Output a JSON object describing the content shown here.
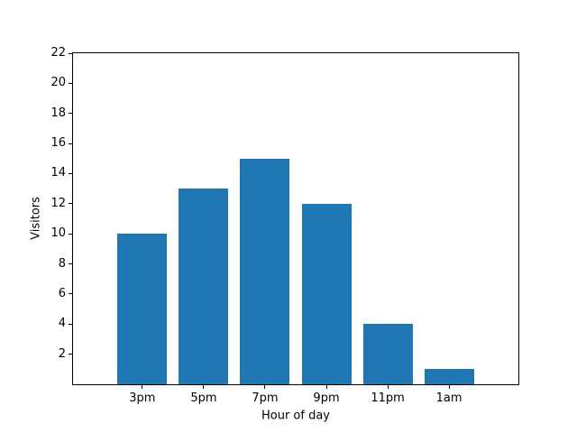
{
  "figure": {
    "background": "#ffffff",
    "spine_color": "#000000",
    "text_color": "#000000"
  },
  "chart_data": {
    "type": "bar",
    "categories": [
      "3pm",
      "5pm",
      "7pm",
      "9pm",
      "11pm",
      "1am"
    ],
    "values": [
      10,
      13,
      15,
      12,
      4,
      1
    ],
    "title": "",
    "xlabel": "Hour of day",
    "ylabel": "Visitors",
    "ylim": [
      0,
      22
    ],
    "yticks": [
      2,
      4,
      6,
      8,
      10,
      12,
      14,
      16,
      18,
      20,
      22
    ],
    "bar_color": "#1f77b4",
    "grid": false,
    "legend": null
  }
}
